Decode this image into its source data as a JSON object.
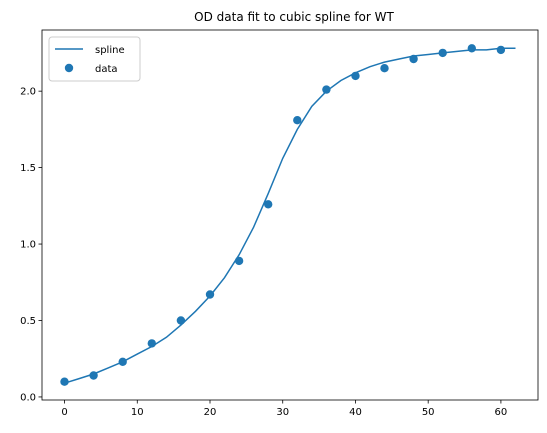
{
  "chart_data": {
    "type": "line",
    "title": "OD data fit to cubic spline for WT",
    "xlabel": "",
    "ylabel": "",
    "xlim": [
      -3.1,
      65.1
    ],
    "ylim": [
      -0.02,
      2.4
    ],
    "xticks": [
      0,
      10,
      20,
      30,
      40,
      50,
      60
    ],
    "yticks": [
      0.0,
      0.5,
      1.0,
      1.5,
      2.0
    ],
    "xtick_labels": [
      "0",
      "10",
      "20",
      "30",
      "40",
      "50",
      "60"
    ],
    "ytick_labels": [
      "0.0",
      "0.5",
      "1.0",
      "1.5",
      "2.0"
    ],
    "grid": false,
    "legend_position": "top-left",
    "color": "#1f77b4",
    "series": [
      {
        "name": "spline",
        "kind": "line",
        "x": [
          0,
          2,
          4,
          6,
          8,
          10,
          12,
          14,
          16,
          18,
          20,
          22,
          24,
          26,
          28,
          30,
          32,
          34,
          36,
          38,
          40,
          42,
          44,
          46,
          48,
          50,
          52,
          54,
          56,
          58,
          60,
          62
        ],
        "values": [
          0.09,
          0.12,
          0.15,
          0.19,
          0.23,
          0.28,
          0.33,
          0.39,
          0.47,
          0.56,
          0.66,
          0.78,
          0.93,
          1.11,
          1.33,
          1.56,
          1.75,
          1.9,
          2.0,
          2.07,
          2.12,
          2.16,
          2.19,
          2.21,
          2.23,
          2.24,
          2.25,
          2.26,
          2.27,
          2.27,
          2.28,
          2.28
        ]
      },
      {
        "name": "data",
        "kind": "scatter",
        "x": [
          0,
          4,
          8,
          12,
          16,
          20,
          24,
          28,
          32,
          36,
          40,
          44,
          48,
          52,
          56,
          60
        ],
        "values": [
          0.1,
          0.14,
          0.23,
          0.35,
          0.5,
          0.67,
          0.89,
          1.26,
          1.81,
          2.01,
          2.1,
          2.15,
          2.21,
          2.25,
          2.28,
          2.27
        ]
      }
    ]
  }
}
